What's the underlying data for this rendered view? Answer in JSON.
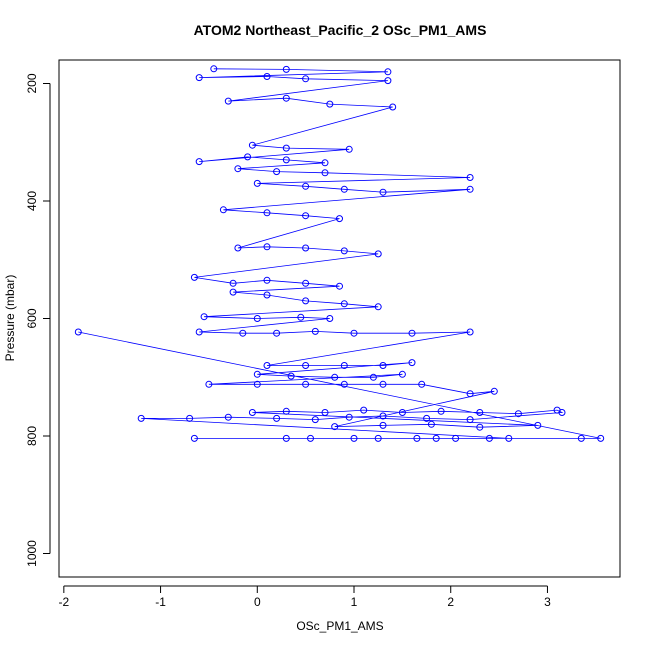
{
  "chart_data": {
    "type": "scatter",
    "title": "ATOM2 Northeast_Pacific_2 OSc_PM1_AMS",
    "xlabel": "OSc_PM1_AMS",
    "ylabel": "Pressure (mbar)",
    "xlim": [
      -2.05,
      3.75
    ],
    "ylim": [
      1040,
      160
    ],
    "y_reversed": true,
    "x_ticks": [
      -2,
      -1,
      0,
      1,
      2,
      3
    ],
    "y_ticks": [
      200,
      400,
      600,
      800,
      1000
    ],
    "grid": false,
    "marker": "open-circle",
    "connect_points": true,
    "color": "#0000ff",
    "points": [
      [
        -1.85,
        623
      ],
      [
        3.55,
        804
      ],
      [
        -0.65,
        804
      ],
      [
        3.35,
        804
      ],
      [
        0.3,
        804
      ],
      [
        0.55,
        804
      ],
      [
        1.0,
        804
      ],
      [
        1.25,
        804
      ],
      [
        1.65,
        804
      ],
      [
        1.85,
        804
      ],
      [
        2.05,
        804
      ],
      [
        2.4,
        804
      ],
      [
        2.6,
        804
      ],
      [
        -1.2,
        770
      ],
      [
        -0.7,
        770
      ],
      [
        -0.3,
        768
      ],
      [
        0.2,
        770
      ],
      [
        0.6,
        772
      ],
      [
        0.95,
        768
      ],
      [
        1.3,
        766
      ],
      [
        1.75,
        770
      ],
      [
        2.2,
        772
      ],
      [
        3.15,
        760
      ],
      [
        3.1,
        756
      ],
      [
        2.7,
        762
      ],
      [
        2.3,
        760
      ],
      [
        1.9,
        758
      ],
      [
        1.5,
        760
      ],
      [
        1.1,
        756
      ],
      [
        0.7,
        760
      ],
      [
        0.3,
        758
      ],
      [
        -0.05,
        760
      ],
      [
        2.9,
        782
      ],
      [
        2.3,
        785
      ],
      [
        1.8,
        780
      ],
      [
        1.3,
        782
      ],
      [
        0.8,
        784
      ],
      [
        2.45,
        724
      ],
      [
        2.2,
        728
      ],
      [
        1.7,
        712
      ],
      [
        1.3,
        712
      ],
      [
        0.9,
        712
      ],
      [
        0.5,
        712
      ],
      [
        0.0,
        712
      ],
      [
        -0.5,
        712
      ],
      [
        1.5,
        695
      ],
      [
        1.2,
        700
      ],
      [
        0.8,
        700
      ],
      [
        0.35,
        698
      ],
      [
        0.0,
        695
      ],
      [
        1.6,
        675
      ],
      [
        1.3,
        680
      ],
      [
        0.9,
        680
      ],
      [
        0.5,
        680
      ],
      [
        0.1,
        680
      ],
      [
        2.2,
        623
      ],
      [
        1.6,
        625
      ],
      [
        1.0,
        625
      ],
      [
        0.6,
        622
      ],
      [
        0.2,
        625
      ],
      [
        -0.15,
        625
      ],
      [
        -0.6,
        623
      ],
      [
        0.75,
        600
      ],
      [
        0.45,
        598
      ],
      [
        0.0,
        600
      ],
      [
        -0.55,
        597
      ],
      [
        1.25,
        580
      ],
      [
        0.9,
        575
      ],
      [
        0.5,
        570
      ],
      [
        0.1,
        560
      ],
      [
        -0.25,
        555
      ],
      [
        0.85,
        545
      ],
      [
        0.5,
        540
      ],
      [
        0.1,
        535
      ],
      [
        -0.25,
        540
      ],
      [
        -0.65,
        530
      ],
      [
        1.25,
        490
      ],
      [
        0.9,
        485
      ],
      [
        0.5,
        480
      ],
      [
        0.1,
        478
      ],
      [
        -0.2,
        480
      ],
      [
        0.85,
        430
      ],
      [
        0.5,
        425
      ],
      [
        0.1,
        420
      ],
      [
        -0.35,
        415
      ],
      [
        2.2,
        380
      ],
      [
        1.3,
        385
      ],
      [
        0.9,
        380
      ],
      [
        0.5,
        375
      ],
      [
        0.0,
        370
      ],
      [
        2.2,
        360
      ],
      [
        0.7,
        352
      ],
      [
        0.2,
        350
      ],
      [
        -0.2,
        345
      ],
      [
        0.7,
        335
      ],
      [
        0.3,
        330
      ],
      [
        -0.1,
        325
      ],
      [
        -0.6,
        333
      ],
      [
        0.95,
        312
      ],
      [
        0.3,
        310
      ],
      [
        -0.05,
        305
      ],
      [
        1.4,
        240
      ],
      [
        0.75,
        235
      ],
      [
        0.3,
        225
      ],
      [
        -0.3,
        230
      ],
      [
        1.35,
        195
      ],
      [
        0.5,
        192
      ],
      [
        0.1,
        188
      ],
      [
        -0.6,
        190
      ],
      [
        1.35,
        180
      ],
      [
        0.3,
        176
      ],
      [
        -0.45,
        175
      ]
    ]
  }
}
